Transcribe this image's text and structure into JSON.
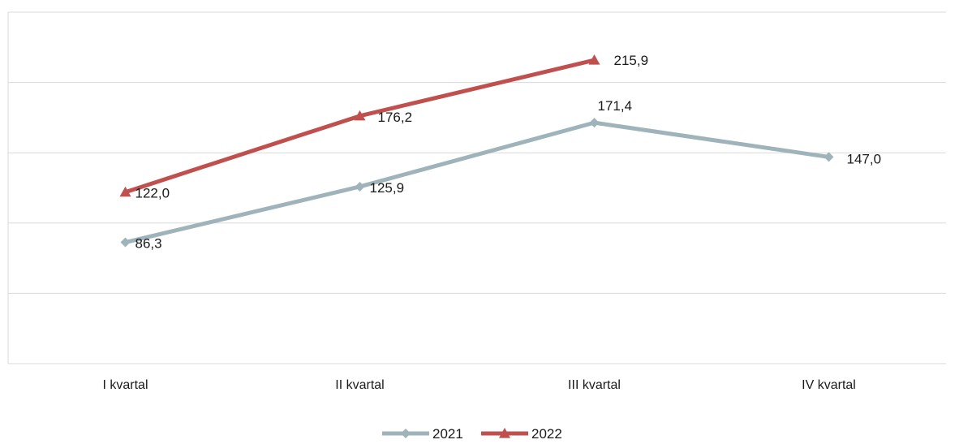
{
  "chart_data": {
    "type": "line",
    "categories": [
      "I kvartal",
      "II kvartal",
      "III kvartal",
      "IV kvartal"
    ],
    "series": [
      {
        "name": "2021",
        "values": [
          86.3,
          125.9,
          171.4,
          147.0
        ],
        "labels": [
          "86,3",
          "125,9",
          "171,4",
          "147,0"
        ],
        "color": "#9fb3ba",
        "marker": "diamond"
      },
      {
        "name": "2022",
        "values": [
          122.0,
          176.2,
          215.9,
          null
        ],
        "labels": [
          "122,0",
          "176,2",
          "215,9",
          ""
        ],
        "color": "#c0504d",
        "marker": "triangle"
      }
    ],
    "ylim": [
      0,
      250
    ],
    "grid": true,
    "y_axis_labels_shown": false,
    "legend_position": "bottom"
  }
}
